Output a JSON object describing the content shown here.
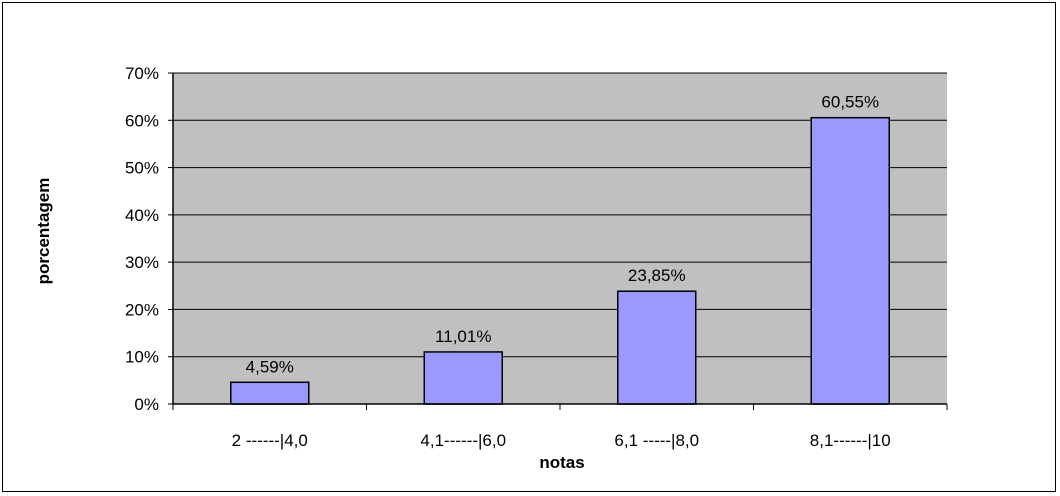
{
  "chart_data": {
    "type": "bar",
    "title": "",
    "xlabel": "notas",
    "ylabel": "porcentagem",
    "categories": [
      "2 ------|4,0",
      "4,1------|6,0",
      "6,1 -----|8,0",
      "8,1------|10"
    ],
    "values": [
      4.59,
      11.01,
      23.85,
      60.55
    ],
    "data_labels": [
      "4,59%",
      "11,01%",
      "23,85%",
      "60,55%"
    ],
    "ylim": [
      0,
      70
    ],
    "yticks": [
      0,
      10,
      20,
      30,
      40,
      50,
      60,
      70
    ],
    "ytick_labels": [
      "0%",
      "10%",
      "20%",
      "30%",
      "40%",
      "50%",
      "60%",
      "70%"
    ],
    "grid": true,
    "legend": "none",
    "colors": {
      "plot_background": "#C0C0C0",
      "bar_fill": "#9999FF",
      "bar_stroke": "#000000",
      "gridline": "#000000"
    }
  }
}
